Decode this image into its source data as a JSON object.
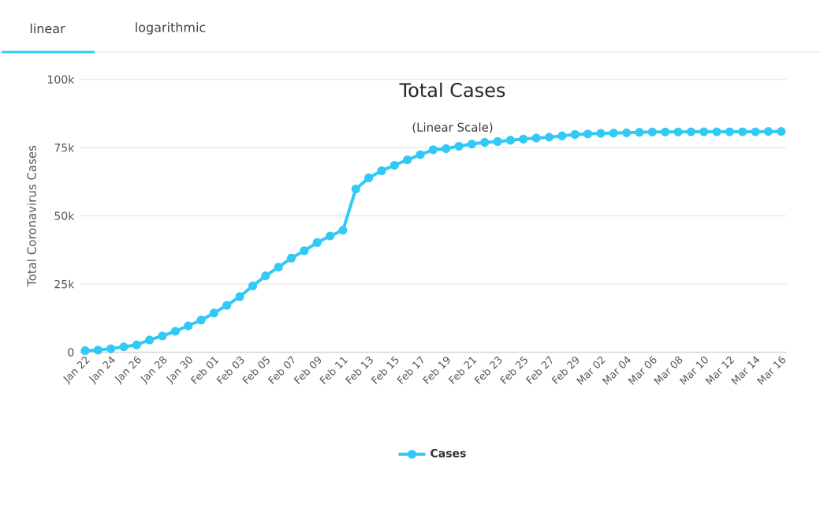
{
  "chart_data": {
    "type": "line",
    "title": "Total Cases",
    "subtitle": "(Linear Scale)",
    "ylabel": "Total Coronavirus Cases",
    "annotations": [
      "linear",
      "logarithmic"
    ],
    "categories": [
      "Jan 22",
      null,
      "Jan 24",
      null,
      "Jan 26",
      null,
      "Jan 28",
      null,
      "Jan 30",
      null,
      "Feb 01",
      null,
      "Feb 03",
      null,
      "Feb 05",
      null,
      "Feb 07",
      null,
      "Feb 09",
      null,
      "Feb 11",
      null,
      "Feb 13",
      null,
      "Feb 15",
      null,
      "Feb 17",
      null,
      "Feb 19",
      null,
      "Feb 21",
      null,
      "Feb 23",
      null,
      "Feb 25",
      null,
      "Feb 27",
      null,
      "Feb 29",
      null,
      "Mar 02",
      null,
      "Mar 04",
      null,
      "Mar 06",
      null,
      "Mar 08",
      null,
      "Mar 10",
      null,
      "Mar 12",
      null,
      "Mar 14",
      null,
      "Mar 16"
    ],
    "series": [
      {
        "name": "Cases",
        "color": "#33c9f5",
        "values": [
          600,
          800,
          1300,
          2000,
          2700,
          4500,
          6000,
          7700,
          9700,
          11800,
          14400,
          17200,
          20400,
          24300,
          28000,
          31200,
          34500,
          37200,
          40200,
          42600,
          44700,
          59800,
          63900,
          66500,
          68500,
          70500,
          72400,
          74200,
          74600,
          75500,
          76300,
          76900,
          77200,
          77700,
          78100,
          78500,
          78800,
          79300,
          79800,
          80000,
          80200,
          80300,
          80400,
          80600,
          80700,
          80700,
          80700,
          80800,
          80800,
          80800,
          80800,
          80800,
          80800,
          80900,
          80900
        ]
      }
    ],
    "ylim": [
      0,
      100000
    ],
    "yticks": [
      0,
      {
        "value": 25000,
        "label": "25k"
      },
      {
        "value": 50000,
        "label": "50k"
      },
      {
        "value": 75000,
        "label": "75k"
      },
      {
        "value": 100000,
        "label": "100k"
      }
    ],
    "grid": "y",
    "legend": "bottom",
    "marker": "circle",
    "line_style": "solid"
  }
}
